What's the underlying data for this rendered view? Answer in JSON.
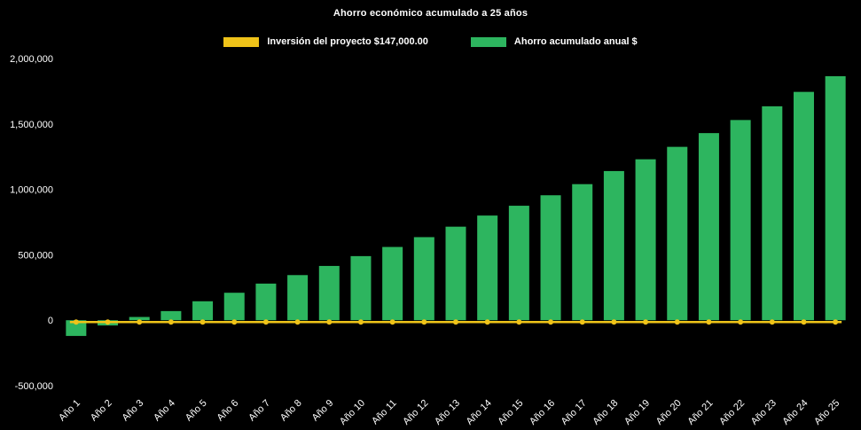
{
  "chart_data": {
    "type": "bar",
    "title": "Ahorro económico acumulado a 25 años",
    "background": "#000000",
    "text_color": "#ffffff",
    "grid": false,
    "legend_position": "top",
    "categories": [
      "Año 1",
      "Año 2",
      "Año 3",
      "Año 4",
      "Año 5",
      "Año 6",
      "Año 7",
      "Año 8",
      "Año 9",
      "Año 10",
      "Año 11",
      "Año 12",
      "Año 13",
      "Año 14",
      "Año 15",
      "Año 16",
      "Año 17",
      "Año 18",
      "Año 19",
      "Año 20",
      "Año 21",
      "Año 22",
      "Año 23",
      "Año 24",
      "Año 25"
    ],
    "series": [
      {
        "name": "Inversión del proyecto $147,000.00",
        "type": "line",
        "color": "#efc319",
        "constant_value": 0
      },
      {
        "name": "Ahorro acumulado anual $",
        "type": "bar",
        "color": "#2db55f",
        "values": [
          -120000,
          -40000,
          25000,
          70000,
          145000,
          210000,
          280000,
          345000,
          415000,
          490000,
          560000,
          635000,
          715000,
          800000,
          875000,
          955000,
          1040000,
          1140000,
          1230000,
          1325000,
          1430000,
          1530000,
          1635000,
          1745000,
          1865000
        ]
      }
    ],
    "xlabel": "",
    "ylabel": "",
    "ylim": [
      -500000,
      2000000
    ],
    "yticks": {
      "values": [
        2000000,
        1500000,
        1000000,
        500000,
        0,
        -500000
      ],
      "labels": [
        "2,000,000",
        "1,500,000",
        "1,000,000",
        "500,000",
        "0",
        "-500,000"
      ]
    }
  }
}
